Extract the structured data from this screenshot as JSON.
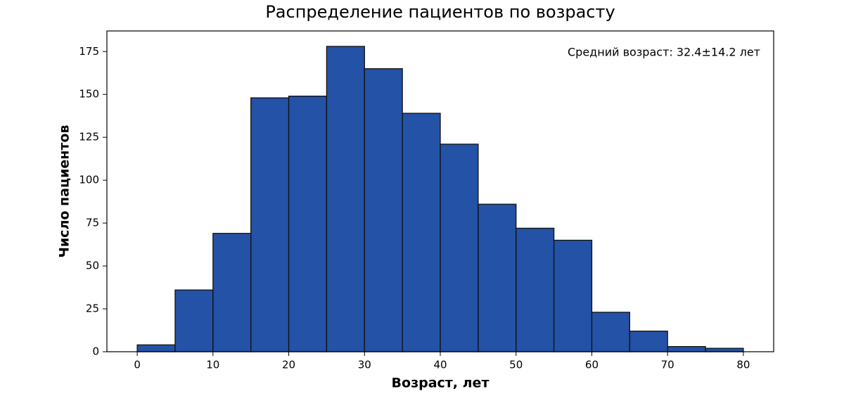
{
  "chart_data": {
    "type": "histogram",
    "title": "Распределение пациентов по возрасту",
    "xlabel": "Возраст, лет",
    "ylabel": "Число пациентов",
    "annotation": "Средний возраст: 32.4±14.2 лет",
    "bins": [
      0,
      5,
      10,
      15,
      20,
      25,
      30,
      35,
      40,
      45,
      50,
      55,
      60,
      65,
      70,
      75,
      80
    ],
    "values": [
      4,
      36,
      69,
      148,
      149,
      178,
      165,
      139,
      121,
      86,
      72,
      65,
      23,
      12,
      3,
      2
    ],
    "color": "#2352a6",
    "edgecolor": "#111111",
    "xlim": [
      -4,
      84
    ],
    "ylim": [
      0,
      187
    ],
    "xticks": [
      0,
      10,
      20,
      30,
      40,
      50,
      60,
      70,
      80
    ],
    "yticks": [
      0,
      25,
      50,
      75,
      100,
      125,
      150,
      175
    ]
  }
}
